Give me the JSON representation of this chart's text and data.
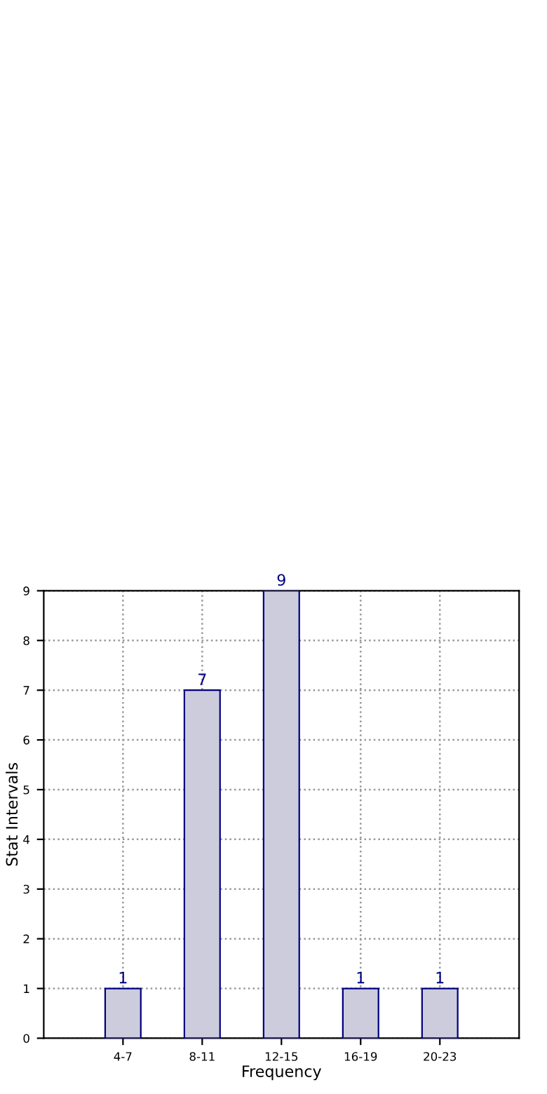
{
  "chart_data": {
    "type": "bar",
    "xlabel": "Frequency",
    "ylabel": "Stat Intervals",
    "categories": [
      "4-7",
      "8-11",
      "12-15",
      "16-19",
      "20-23"
    ],
    "values": [
      1,
      7,
      9,
      1,
      1
    ],
    "color": "#ccccdd",
    "ylim": [
      0,
      9
    ],
    "yticks": [
      0,
      1,
      2,
      3,
      4,
      5,
      6,
      7,
      8,
      9
    ],
    "grid": true,
    "data_labels": true
  }
}
